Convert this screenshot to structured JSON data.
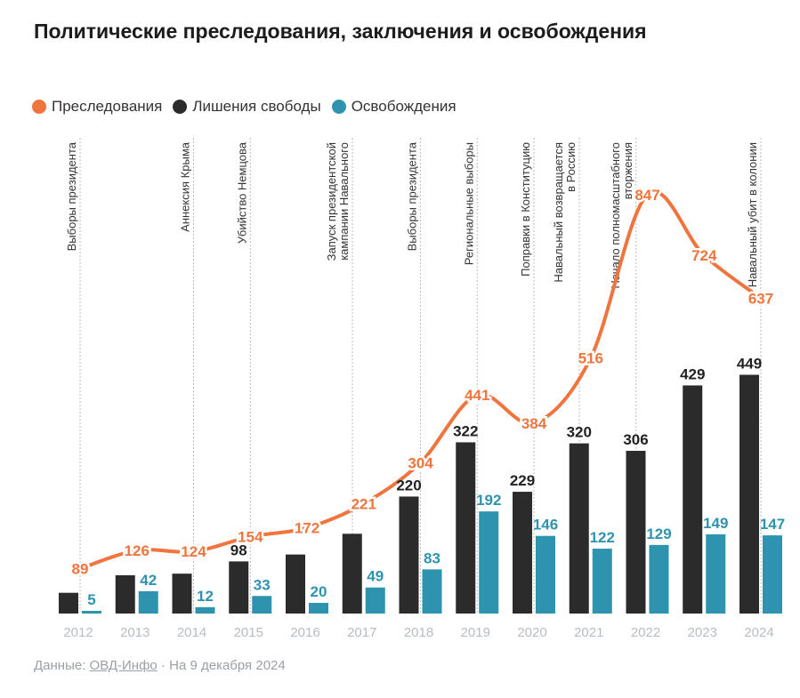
{
  "title": "Политические преследования, заключения и освобождения",
  "legend": [
    {
      "label": "Преследования",
      "color": "#f0743e"
    },
    {
      "label": "Лишения свободы",
      "color": "#2b2b2b"
    },
    {
      "label": "Освобождения",
      "color": "#2e93ae"
    }
  ],
  "footer": {
    "prefix": "Данные:",
    "source": "ОВД-Инфо",
    "suffix": "· На 9 декабря 2024"
  },
  "colors": {
    "persecution": "#f0743e",
    "imprisonment": "#2b2b2b",
    "release": "#2e93ae",
    "axis_text": "#b7bdc2",
    "event_line": "#bbbbbb"
  },
  "chart_data": {
    "type": "bar",
    "categories": [
      "2012",
      "2013",
      "2014",
      "2015",
      "2016",
      "2017",
      "2018",
      "2019",
      "2020",
      "2021",
      "2022",
      "2023",
      "2024"
    ],
    "series": [
      {
        "name": "Лишения свободы",
        "kind": "bar",
        "values": [
          null,
          null,
          null,
          98,
          null,
          null,
          220,
          322,
          229,
          320,
          306,
          429,
          449
        ],
        "labels": [
          "",
          "",
          "",
          "98",
          "",
          "",
          "220",
          "322",
          "229",
          "320",
          "306",
          "429",
          "449"
        ],
        "approx_values": [
          39,
          72,
          75,
          98,
          111,
          150,
          220,
          322,
          229,
          320,
          306,
          429,
          449
        ]
      },
      {
        "name": "Освобождения",
        "kind": "bar",
        "values": [
          5,
          42,
          12,
          33,
          20,
          49,
          83,
          192,
          146,
          122,
          129,
          149,
          147
        ]
      },
      {
        "name": "Преследования",
        "kind": "line",
        "values": [
          89,
          126,
          124,
          154,
          172,
          221,
          304,
          441,
          384,
          516,
          847,
          724,
          637
        ]
      }
    ],
    "events": [
      {
        "year": 2012,
        "text": "Выборы президента"
      },
      {
        "year": 2014,
        "text": "Аннексия Крыма"
      },
      {
        "year": 2015,
        "text": "Убийство Немцова"
      },
      {
        "year": 2016.8,
        "text": "Запуск президентской кампании Навального"
      },
      {
        "year": 2018,
        "text": "Выборы президента"
      },
      {
        "year": 2019,
        "text": "Региональные выборы"
      },
      {
        "year": 2020,
        "text": "Поправки в Конституцию"
      },
      {
        "year": 2020.8,
        "text": "Навальный возвращается в Россию"
      },
      {
        "year": 2021.8,
        "text": "Начало полномасштабного вторжения"
      },
      {
        "year": 2024,
        "text": "Навальный убит в колонии"
      }
    ],
    "xlabel": "",
    "ylabel": "",
    "ylim": [
      0,
      900
    ],
    "grid": false,
    "legend_position": "top-left"
  }
}
